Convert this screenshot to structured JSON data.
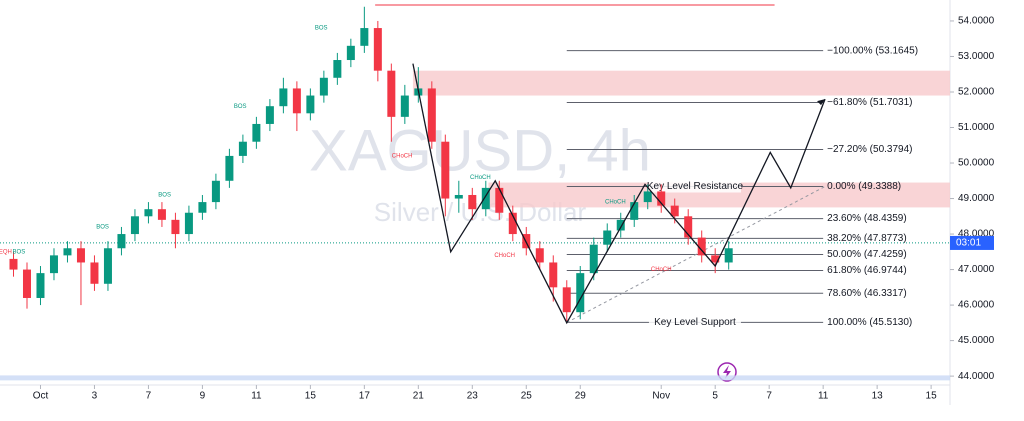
{
  "chart_data": {
    "type": "candlestick",
    "title": "XAGUSD, 4h",
    "subtitle": "Silver / U.S. Dollar",
    "up_color": "#089981",
    "down_color": "#f23645",
    "x": [
      -1.0,
      -0.5,
      0.0,
      0.5,
      1.0,
      1.5,
      2.0,
      2.5,
      3.0,
      3.5,
      4.0,
      4.5,
      5.0,
      5.5,
      6.0,
      6.5,
      7.0,
      7.5,
      8.0,
      8.5,
      9.0,
      9.5,
      10.0,
      10.5,
      11.0,
      11.5,
      12.0,
      12.5,
      13.0,
      13.5,
      14.0,
      14.5,
      15.0,
      15.5,
      16.0,
      16.5,
      17.0,
      17.5,
      18.0,
      18.5,
      19.0,
      19.5,
      20.0,
      20.5,
      21.0,
      21.5,
      22.0,
      22.5,
      23.0,
      23.5,
      24.0,
      24.5,
      25.0,
      25.5
    ],
    "open": [
      47.3,
      47.0,
      46.2,
      46.9,
      47.4,
      47.6,
      47.2,
      46.6,
      47.6,
      48.0,
      48.5,
      48.7,
      48.4,
      48.0,
      48.6,
      48.9,
      49.5,
      50.2,
      50.6,
      51.1,
      51.6,
      52.1,
      51.4,
      51.9,
      52.4,
      52.9,
      53.3,
      53.8,
      52.6,
      51.3,
      51.9,
      52.1,
      50.6,
      49.0,
      49.1,
      48.7,
      49.3,
      48.6,
      48.0,
      47.6,
      47.2,
      46.5,
      45.8,
      46.9,
      47.7,
      48.1,
      48.4,
      48.9,
      49.2,
      48.8,
      48.5,
      47.9,
      47.4,
      47.2
    ],
    "high": [
      47.5,
      47.2,
      47.1,
      47.6,
      47.8,
      47.8,
      47.4,
      47.8,
      48.2,
      48.7,
      48.9,
      48.9,
      48.6,
      48.8,
      49.1,
      49.7,
      50.4,
      50.8,
      51.3,
      51.8,
      52.4,
      52.3,
      52.1,
      52.6,
      53.1,
      53.5,
      54.4,
      54.0,
      52.8,
      52.2,
      52.7,
      52.3,
      50.8,
      49.5,
      49.3,
      49.5,
      49.5,
      48.8,
      48.2,
      47.8,
      47.4,
      46.7,
      47.1,
      47.9,
      48.3,
      48.6,
      49.1,
      49.4,
      49.4,
      49.0,
      48.7,
      48.1,
      47.6,
      47.8
    ],
    "low": [
      46.8,
      45.9,
      46.0,
      46.7,
      47.2,
      46.0,
      46.4,
      46.4,
      47.4,
      47.8,
      48.3,
      48.2,
      47.6,
      47.8,
      48.4,
      48.7,
      49.3,
      50.0,
      50.4,
      50.9,
      51.4,
      50.9,
      51.2,
      51.7,
      52.2,
      52.7,
      53.1,
      52.3,
      50.6,
      51.1,
      51.7,
      50.4,
      48.5,
      48.6,
      48.4,
      48.5,
      48.4,
      47.8,
      47.4,
      47.0,
      46.1,
      45.55,
      45.6,
      46.7,
      47.5,
      47.9,
      48.2,
      48.7,
      48.6,
      48.3,
      47.7,
      47.2,
      46.9,
      47.0
    ],
    "close": [
      47.0,
      46.2,
      46.9,
      47.4,
      47.6,
      47.2,
      46.6,
      47.6,
      48.0,
      48.5,
      48.7,
      48.4,
      48.0,
      48.6,
      48.9,
      49.5,
      50.2,
      50.6,
      51.1,
      51.6,
      52.1,
      51.4,
      51.9,
      52.4,
      52.9,
      53.3,
      53.8,
      52.6,
      51.3,
      51.9,
      52.1,
      50.6,
      49.0,
      49.1,
      48.7,
      49.3,
      48.6,
      48.0,
      47.6,
      47.2,
      46.5,
      45.8,
      46.9,
      47.7,
      48.1,
      48.4,
      48.9,
      49.2,
      48.8,
      48.5,
      47.9,
      47.4,
      47.2,
      47.6
    ],
    "xlim": [
      -1.5,
      33.7
    ],
    "xticks": [
      {
        "value": 0,
        "label": "Oct"
      },
      {
        "value": 2,
        "label": "3"
      },
      {
        "value": 4,
        "label": "7"
      },
      {
        "value": 6,
        "label": "9"
      },
      {
        "value": 8,
        "label": "11"
      },
      {
        "value": 10,
        "label": "15"
      },
      {
        "value": 12,
        "label": "17"
      },
      {
        "value": 14,
        "label": "21"
      },
      {
        "value": 16,
        "label": "23"
      },
      {
        "value": 18,
        "label": "25"
      },
      {
        "value": 20,
        "label": "29"
      },
      {
        "value": 23,
        "label": "Nov"
      },
      {
        "value": 25,
        "label": "5"
      },
      {
        "value": 27,
        "label": "7"
      },
      {
        "value": 29,
        "label": "11"
      },
      {
        "value": 31,
        "label": "13"
      },
      {
        "value": 33,
        "label": "15"
      }
    ],
    "ylim": [
      43.75,
      54.59
    ],
    "yticks": [
      {
        "value": 44,
        "label": "44.0000"
      },
      {
        "value": 45,
        "label": "45.0000"
      },
      {
        "value": 46,
        "label": "46.0000"
      },
      {
        "value": 47,
        "label": "47.0000"
      },
      {
        "value": 48,
        "label": "48.0000"
      },
      {
        "value": 49,
        "label": "49.0000"
      },
      {
        "value": 50,
        "label": "50.0000"
      },
      {
        "value": 51,
        "label": "51.0000"
      },
      {
        "value": 52,
        "label": "52.0000"
      },
      {
        "value": 53,
        "label": "53.0000"
      },
      {
        "value": 54,
        "label": "54.0000"
      }
    ],
    "fib_x": [
      19.5,
      29.0
    ],
    "fib_levels": [
      {
        "value": 53.1645,
        "label": "−100.00% (53.1645)"
      },
      {
        "value": 51.7031,
        "label": "−61.80% (51.7031)"
      },
      {
        "value": 50.3794,
        "label": "−27.20% (50.3794)"
      },
      {
        "value": 49.3388,
        "label": "0.00% (49.3388)",
        "note": "Key Level Resistance"
      },
      {
        "value": 48.4359,
        "label": "23.60% (48.4359)"
      },
      {
        "value": 47.8773,
        "label": "38.20% (47.8773)"
      },
      {
        "value": 47.4259,
        "label": "50.00% (47.4259)"
      },
      {
        "value": 46.9744,
        "label": "61.80% (46.9744)"
      },
      {
        "value": 46.3317,
        "label": "78.60% (46.3317)"
      },
      {
        "value": 45.513,
        "label": "100.00% (45.5130)",
        "note": "Key Level Support"
      }
    ],
    "zones": [
      {
        "x_start": 13.8,
        "low": 51.9,
        "high": 52.6,
        "color": "#f7c9cc"
      },
      {
        "x_start": 16.6,
        "low": 48.75,
        "high": 49.45,
        "color": "#f7c9cc"
      },
      {
        "x_start": -1.5,
        "low": 43.88,
        "high": 44.02,
        "color": "#c9d8f5"
      }
    ],
    "swing_path": {
      "x": [
        13.8,
        15.2,
        16.85,
        19.5,
        22.4,
        25.0,
        27.04,
        27.8,
        29.07
      ],
      "values": [
        52.8,
        47.5,
        49.5,
        45.5,
        49.4,
        47.1,
        50.3,
        49.3,
        51.8
      ]
    },
    "trendline": {
      "x": [
        19.5,
        29.07
      ],
      "values": [
        45.51,
        49.34
      ]
    },
    "high_line": {
      "x": [
        12.4,
        27.2
      ],
      "value": 54.45
    },
    "annotations": [
      {
        "text": "BOS",
        "x": 10.4,
        "value": 53.8,
        "color": "#089981"
      },
      {
        "text": "BOS",
        "x": 7.4,
        "value": 51.6,
        "color": "#089981"
      },
      {
        "text": "BOS",
        "x": 4.6,
        "value": 49.1,
        "color": "#089981"
      },
      {
        "text": "BOS",
        "x": 2.3,
        "value": 48.2,
        "color": "#089981"
      },
      {
        "text": "BOS",
        "x": -0.8,
        "value": 47.5,
        "color": "#089981"
      },
      {
        "text": "EQH",
        "x": -1.3,
        "value": 47.5,
        "color": "#f23645"
      },
      {
        "text": "CHoCH",
        "x": 13.4,
        "value": 50.2,
        "color": "#f23645"
      },
      {
        "text": "CHoCH",
        "x": 16.3,
        "value": 49.6,
        "color": "#089981"
      },
      {
        "text": "CHoCH",
        "x": 17.2,
        "value": 47.4,
        "color": "#f23645"
      },
      {
        "text": "CHoCH",
        "x": 21.3,
        "value": 48.9,
        "color": "#089981"
      },
      {
        "text": "CHoCH",
        "x": 23.0,
        "value": 47.0,
        "color": "#f23645"
      }
    ],
    "last_price": 47.75,
    "countdown": "03:01"
  }
}
